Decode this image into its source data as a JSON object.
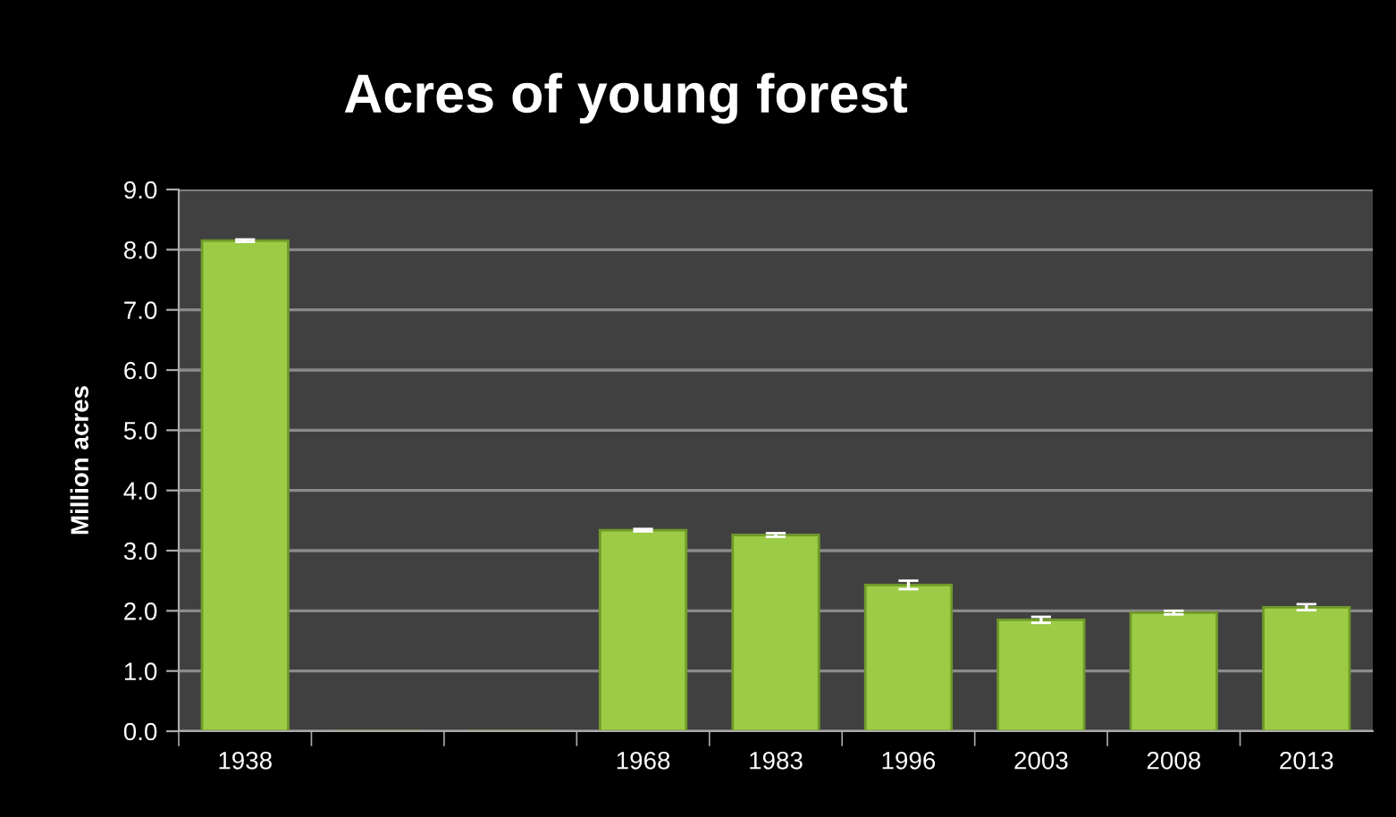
{
  "chart_data": {
    "type": "bar",
    "title": "Acres of young forest",
    "ylabel": "Million acres",
    "categories": [
      "1938",
      null,
      null,
      "1968",
      "1983",
      "1996",
      "2003",
      "2008",
      "2013"
    ],
    "values": [
      8.15,
      null,
      null,
      3.34,
      3.26,
      2.43,
      1.85,
      1.97,
      2.06
    ],
    "errors": [
      0.02,
      null,
      null,
      0.02,
      0.03,
      0.07,
      0.05,
      0.03,
      0.05
    ],
    "color": "#9ccb45",
    "ylim": [
      0,
      9
    ],
    "yticks": [
      {
        "value": 0,
        "label": "0.0"
      },
      {
        "value": 1,
        "label": "1.0"
      },
      {
        "value": 2,
        "label": "2.0"
      },
      {
        "value": 3,
        "label": "3.0"
      },
      {
        "value": 4,
        "label": "4.0"
      },
      {
        "value": 5,
        "label": "5.0"
      },
      {
        "value": 6,
        "label": "6.0"
      },
      {
        "value": 7,
        "label": "7.0"
      },
      {
        "value": 8,
        "label": "8.0"
      },
      {
        "value": 9,
        "label": "9.0"
      }
    ],
    "grid": "y"
  }
}
